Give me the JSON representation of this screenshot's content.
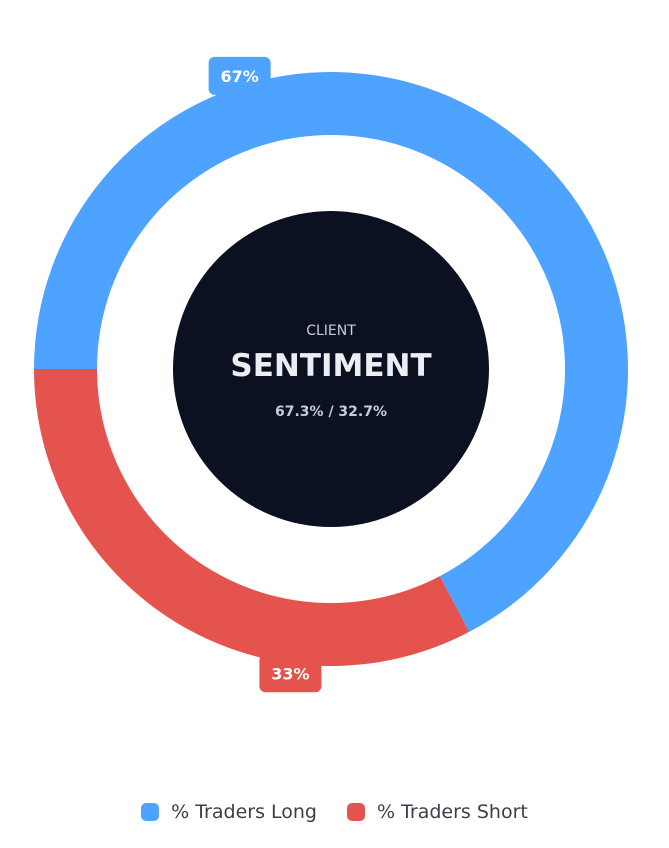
{
  "chart_data": {
    "type": "pie",
    "variant": "donut",
    "categories": [
      "% Traders Long",
      "% Traders Short"
    ],
    "values": [
      67.3,
      32.7
    ],
    "data_labels": [
      "67%",
      "33%"
    ],
    "colors": [
      "#4da3ff",
      "#e5534f"
    ],
    "center": {
      "subtitle": "CLIENT",
      "title": "SENTIMENT",
      "ratio": "67.3% / 32.7%",
      "background": "#0b1120"
    },
    "legend": {
      "placement": "bottom-center",
      "items": [
        {
          "label": "% Traders Long",
          "color": "#4da3ff"
        },
        {
          "label": "% Traders Short",
          "color": "#e5534f"
        }
      ]
    }
  }
}
